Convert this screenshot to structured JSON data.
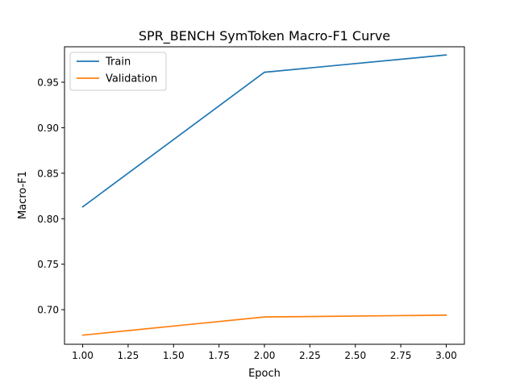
{
  "chart_data": {
    "type": "line",
    "title": "SPR_BENCH SymToken Macro-F1 Curve",
    "xlabel": "Epoch",
    "ylabel": "Macro-F1",
    "xlim": [
      0.9,
      3.1
    ],
    "ylim": [
      0.662,
      0.989
    ],
    "xticks": [
      1.0,
      1.25,
      1.5,
      1.75,
      2.0,
      2.25,
      2.5,
      2.75,
      3.0
    ],
    "xtick_labels": [
      "1.00",
      "1.25",
      "1.50",
      "1.75",
      "2.00",
      "2.25",
      "2.50",
      "2.75",
      "3.00"
    ],
    "yticks": [
      0.7,
      0.75,
      0.8,
      0.85,
      0.9,
      0.95
    ],
    "ytick_labels": [
      "0.70",
      "0.75",
      "0.80",
      "0.85",
      "0.90",
      "0.95"
    ],
    "grid": false,
    "legend_position": "top-left",
    "x": [
      1,
      2,
      3
    ],
    "series": [
      {
        "name": "Train",
        "color": "#1f77b4",
        "values": [
          0.813,
          0.961,
          0.98
        ]
      },
      {
        "name": "Validation",
        "color": "#ff7f0e",
        "values": [
          0.672,
          0.692,
          0.694
        ]
      }
    ]
  }
}
